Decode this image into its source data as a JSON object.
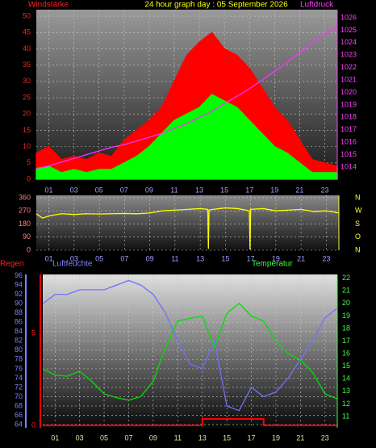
{
  "chart_data": [
    {
      "type": "line",
      "title": "24 hour graph day : 05 September 2026",
      "y_label": "Windstärke",
      "y2_label": "Luftdruck",
      "xlim": [
        0,
        24
      ],
      "xticks": [
        {
          "value": 1,
          "label": "01"
        },
        {
          "value": 3,
          "label": "03"
        },
        {
          "value": 5,
          "label": "05"
        },
        {
          "value": 7,
          "label": "07"
        },
        {
          "value": 9,
          "label": "09"
        },
        11,
        13,
        15,
        17,
        19,
        21,
        23
      ],
      "x": [
        0,
        1,
        2,
        3,
        4,
        5,
        6,
        7,
        8,
        9,
        10,
        11,
        12,
        13,
        14,
        15,
        16,
        17,
        18,
        19,
        20,
        21,
        22,
        23,
        24
      ],
      "ylim": [
        0,
        52
      ],
      "yticks": [
        0,
        5,
        10,
        15,
        20,
        25,
        30,
        35,
        40,
        45,
        50
      ],
      "y2lim": [
        1013.03,
        1026.65
      ],
      "y2ticks": [
        1014,
        1015,
        1016,
        1017,
        1018,
        1019,
        1020,
        1021,
        1022,
        1023,
        1024,
        1025,
        1026
      ],
      "ytick_color": "#ff2020",
      "y2tick_color": "#ff40ff",
      "xtick_color": "#a0a0ff",
      "grid": true,
      "series": [
        {
          "color": "#ff0000",
          "area": true,
          "values": [
            8,
            10,
            6,
            7,
            6,
            8,
            7,
            12,
            15,
            18,
            22,
            30,
            38,
            42,
            45,
            40,
            38,
            34,
            28,
            22,
            18,
            12,
            6,
            5,
            4
          ]
        },
        {
          "color": "#00ff00",
          "area": true,
          "values": [
            3,
            4,
            2,
            3,
            2,
            3,
            3,
            5,
            7,
            10,
            14,
            18,
            20,
            22,
            26,
            24,
            22,
            18,
            14,
            10,
            8,
            5,
            2,
            2,
            2
          ]
        },
        {
          "color": "#ff30ff",
          "axis": "y2",
          "values": [
            1013.9,
            1014.1,
            1014.4,
            1014.7,
            1015,
            1015.3,
            1015.6,
            1015.8,
            1016.1,
            1016.4,
            1016.7,
            1017.1,
            1017.5,
            1018,
            1018.5,
            1019.1,
            1019.7,
            1020.3,
            1021,
            1021.7,
            1022.4,
            1023.2,
            1024,
            1024.7,
            1025.3
          ]
        }
      ]
    },
    {
      "type": "line",
      "xlim": [
        0,
        24
      ],
      "xticks": [
        {
          "value": 1,
          "label": "01"
        },
        {
          "value": 3,
          "label": "03"
        },
        {
          "value": 5,
          "label": "05"
        },
        {
          "value": 7,
          "label": "07"
        },
        {
          "value": 9,
          "label": "09"
        },
        11,
        13,
        15,
        17,
        19,
        21,
        23
      ],
      "x": [
        0,
        0.5,
        1,
        2,
        3,
        4,
        5,
        6,
        7,
        8,
        9,
        10,
        11,
        12,
        13,
        13.6,
        13.65,
        13.7,
        14,
        15,
        16,
        16.9,
        16.95,
        17,
        18,
        19,
        20,
        21,
        22,
        23,
        24
      ],
      "ylim": [
        0,
        376
      ],
      "yticks": [
        0,
        90,
        180,
        270,
        360
      ],
      "y2lim": [
        0,
        376
      ],
      "y2ticks": [
        {
          "value": 360,
          "label": "N"
        },
        {
          "value": 270,
          "label": "W"
        },
        {
          "value": 180,
          "label": "S"
        },
        {
          "value": 90,
          "label": "O"
        },
        {
          "value": 0,
          "label": "N"
        }
      ],
      "ytick_color": "#ff8080",
      "y2tick_color": "#ffff40",
      "xtick_color": "#a0a0ff",
      "grid": true,
      "series": [
        {
          "color": "#ffff00",
          "values": [
            250,
            220,
            235,
            250,
            245,
            250,
            248,
            250,
            252,
            250,
            255,
            270,
            275,
            280,
            285,
            280,
            10,
            275,
            280,
            290,
            285,
            270,
            5,
            280,
            285,
            270,
            275,
            280,
            265,
            270,
            255
          ]
        }
      ]
    },
    {
      "type": "line",
      "y_label": "Luftfeuchte",
      "y2_label": "Temperatur",
      "y3_label": "Regen",
      "xlim": [
        0,
        24
      ],
      "xticks": [
        {
          "value": 1,
          "label": "01"
        },
        {
          "value": 3,
          "label": "03"
        },
        {
          "value": 5,
          "label": "05"
        },
        {
          "value": 7,
          "label": "07"
        },
        {
          "value": 9,
          "label": "09"
        },
        11,
        13,
        15,
        17,
        19,
        21,
        23
      ],
      "x": [
        0,
        1,
        2,
        3,
        4,
        5,
        6,
        7,
        8,
        9,
        10,
        11,
        12,
        13,
        14,
        15,
        16,
        17,
        18,
        19,
        20,
        21,
        22,
        23,
        24
      ],
      "ylim": [
        63.3,
        96.3
      ],
      "yticks": [
        64,
        66,
        68,
        70,
        72,
        74,
        76,
        78,
        80,
        82,
        84,
        86,
        88,
        90,
        92,
        94,
        96
      ],
      "y2lim": [
        10.1,
        22.3
      ],
      "y2ticks": [
        11,
        12,
        13,
        14,
        15,
        16,
        17,
        18,
        19,
        20,
        21,
        22
      ],
      "y3lim": [
        -0.13,
        8.2
      ],
      "y3ticks": [
        0,
        5
      ],
      "ytick_color": "#8080ff",
      "y2tick_color": "#40ff40",
      "y3tick_color": "#ff2020",
      "xtick_color": "#e0e0a0",
      "grid": true,
      "series": [
        {
          "color": "#7070ff",
          "values": [
            90,
            92,
            92,
            93,
            93,
            93,
            94,
            95,
            94,
            92,
            88,
            82,
            77,
            76,
            82,
            68,
            67,
            72,
            70,
            71,
            74,
            78,
            82,
            87,
            89
          ]
        },
        {
          "color": "#00e000",
          "axis": "y2",
          "values": [
            14.8,
            14.3,
            14.2,
            14.6,
            13.8,
            12.8,
            12.5,
            12.3,
            12.6,
            13.8,
            16.5,
            18.6,
            18.8,
            19,
            16.5,
            19.2,
            20,
            19,
            18.6,
            17,
            16,
            15.5,
            14.5,
            12.8,
            12.4
          ]
        },
        {
          "color": "#ff0000",
          "axis": "y3",
          "step": true,
          "values": [
            0,
            0,
            0,
            0,
            0,
            0,
            0,
            0,
            0,
            0,
            0,
            0,
            0,
            0.35,
            0.35,
            0.35,
            0.35,
            0.35,
            0,
            0,
            0,
            0,
            0,
            0,
            0
          ]
        }
      ]
    }
  ]
}
